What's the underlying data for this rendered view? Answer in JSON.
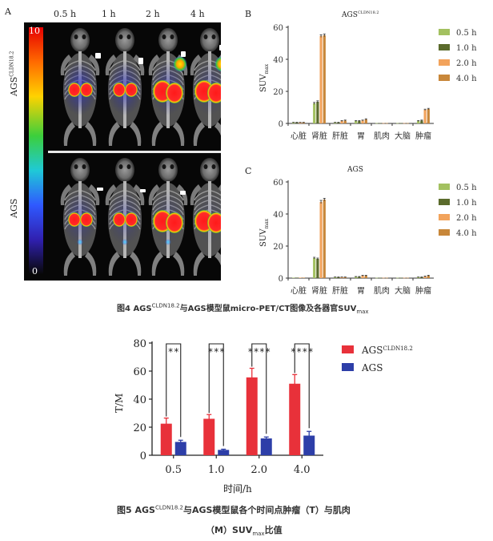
{
  "figure4": {
    "panel_a_letter": "A",
    "panel_b_letter": "B",
    "panel_c_letter": "C",
    "timepoints": [
      "0.5 h",
      "1 h",
      "2 h",
      "4 h"
    ],
    "row_labels": {
      "top": "AGS",
      "top_sup": "CLDN18.2",
      "bottom": "AGS"
    },
    "colorbar": {
      "max": "10",
      "min": "0"
    },
    "caption": {
      "prefix": "图4  AGS",
      "sup": "CLDN18.2",
      "middle": "与AGS模型鼠micro-PET/CT图像及各器官SUV",
      "sub": "max"
    }
  },
  "figure5": {
    "caption_line1_prefix": "图5  AGS",
    "caption_line1_sup": "CLDN18.2",
    "caption_line1_rest": "与AGS模型鼠各个时间点肿瘤（T）与肌肉",
    "caption_line2_prefix": "（M）SUV",
    "caption_line2_sub": "max",
    "caption_line2_rest": "比值"
  },
  "colors": {
    "g05": "#a3c160",
    "g10": "#5b6b2c",
    "g20": "#f2a35c",
    "g40": "#c8873a",
    "red": "#e8313a",
    "blue": "#2d3ea8"
  },
  "chart_data": [
    {
      "id": "B",
      "type": "bar",
      "title": "AGS",
      "title_sup": "CLDN18.2",
      "ylabel": "SUV",
      "ylabel_sub": "max",
      "ylim": [
        0,
        60
      ],
      "yticks": [
        0,
        20,
        40,
        60
      ],
      "categories": [
        "心脏",
        "肾脏",
        "肝脏",
        "胃",
        "肌肉",
        "大脑",
        "肿瘤"
      ],
      "legend_position": "right",
      "series": [
        {
          "name": "0.5 h",
          "color": "#a3c160",
          "values": [
            0.5,
            12.5,
            0.5,
            1.5,
            0.2,
            0.2,
            1.5
          ],
          "errors": [
            0.2,
            0.6,
            0.2,
            0.3,
            0.1,
            0.1,
            0.3
          ]
        },
        {
          "name": "1.0 h",
          "color": "#5b6b2c",
          "values": [
            0.5,
            13.5,
            0.5,
            1.5,
            0.2,
            0.2,
            1.8
          ],
          "errors": [
            0.2,
            0.6,
            0.2,
            0.3,
            0.1,
            0.1,
            0.3
          ]
        },
        {
          "name": "2.0 h",
          "color": "#f2a35c",
          "values": [
            0.5,
            54.5,
            1.5,
            1.8,
            0.2,
            0.2,
            8.5
          ],
          "errors": [
            0.2,
            0.8,
            0.3,
            0.3,
            0.1,
            0.1,
            0.4
          ]
        },
        {
          "name": "4.0 h",
          "color": "#c8873a",
          "values": [
            0.5,
            55.0,
            1.8,
            2.5,
            0.2,
            0.2,
            9.0
          ],
          "errors": [
            0.2,
            0.8,
            0.3,
            0.4,
            0.1,
            0.1,
            0.4
          ]
        }
      ]
    },
    {
      "id": "C",
      "type": "bar",
      "title": "AGS",
      "ylabel": "SUV",
      "ylabel_sub": "max",
      "ylim": [
        0,
        60
      ],
      "yticks": [
        0,
        20,
        40,
        60
      ],
      "categories": [
        "心脏",
        "肾脏",
        "肝脏",
        "胃",
        "肌肉",
        "大脑",
        "肿瘤"
      ],
      "legend_position": "right",
      "series": [
        {
          "name": "0.5 h",
          "color": "#a3c160",
          "values": [
            0.3,
            12.5,
            0.5,
            0.8,
            0.2,
            0.2,
            0.5
          ],
          "errors": [
            0.1,
            0.5,
            0.2,
            0.2,
            0.1,
            0.1,
            0.2
          ]
        },
        {
          "name": "1.0 h",
          "color": "#5b6b2c",
          "values": [
            0.3,
            12.0,
            0.5,
            0.8,
            0.2,
            0.2,
            0.5
          ],
          "errors": [
            0.1,
            0.5,
            0.2,
            0.2,
            0.1,
            0.1,
            0.2
          ]
        },
        {
          "name": "2.0 h",
          "color": "#f2a35c",
          "values": [
            0.3,
            47.5,
            0.5,
            1.5,
            0.2,
            0.2,
            1.0
          ],
          "errors": [
            0.1,
            1.0,
            0.2,
            0.3,
            0.1,
            0.1,
            0.3
          ]
        },
        {
          "name": "4.0 h",
          "color": "#c8873a",
          "values": [
            0.3,
            49.0,
            0.5,
            1.5,
            0.2,
            0.2,
            1.5
          ],
          "errors": [
            0.1,
            0.8,
            0.2,
            0.3,
            0.1,
            0.1,
            0.3
          ]
        }
      ]
    },
    {
      "id": "fig5",
      "type": "bar",
      "ylabel": "T/M",
      "xlabel": "时间/h",
      "ylim": [
        0,
        80
      ],
      "yticks": [
        0,
        20,
        40,
        60,
        80
      ],
      "categories": [
        "0.5",
        "1.0",
        "2.0",
        "4.0"
      ],
      "significance": [
        "**",
        "***",
        "****",
        "****"
      ],
      "legend_position": "right",
      "series": [
        {
          "name": "AGS",
          "name_sup": "CLDN18.2",
          "color": "#e8313a",
          "values": [
            22.5,
            26,
            55.5,
            51
          ],
          "errors": [
            4,
            3,
            6.5,
            6.5
          ]
        },
        {
          "name": "AGS",
          "color": "#2d3ea8",
          "values": [
            9.5,
            3.8,
            12,
            14
          ],
          "errors": [
            1.2,
            0.5,
            1,
            3
          ]
        }
      ]
    }
  ]
}
